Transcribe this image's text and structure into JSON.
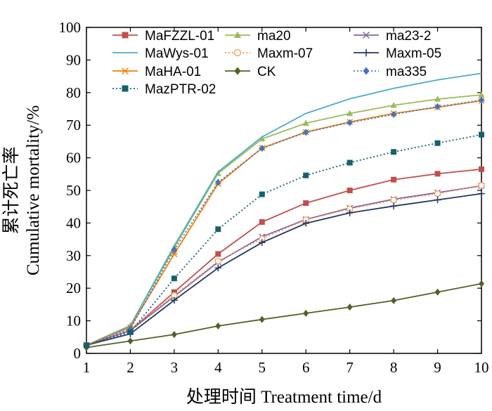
{
  "chart_data": {
    "type": "line",
    "xlabel": "处理时间 Treatment time/d",
    "ylabel_cn": "累计死亡率",
    "ylabel_en": "Cumulative mortality/%",
    "xlim": [
      1,
      10
    ],
    "ylim": [
      0,
      100
    ],
    "x_ticks": [
      1,
      2,
      3,
      4,
      5,
      6,
      7,
      8,
      9,
      10
    ],
    "y_ticks": [
      0,
      10,
      20,
      30,
      40,
      50,
      60,
      70,
      80,
      90,
      100
    ],
    "x": [
      1,
      2,
      3,
      4,
      5,
      6,
      7,
      8,
      9,
      10
    ],
    "legend_position": "top",
    "series": [
      {
        "name": "MaFZZL-01",
        "color": "#c0504d",
        "marker": "square",
        "dash": "solid",
        "values": [
          2.5,
          7.0,
          18.8,
          30.5,
          40.3,
          46.1,
          50.0,
          53.3,
          55.1,
          56.5
        ]
      },
      {
        "name": "ma20",
        "color": "#9bbb59",
        "marker": "triangle",
        "dash": "solid",
        "values": [
          2.5,
          8.5,
          32.5,
          55.2,
          65.8,
          70.6,
          73.6,
          76.1,
          78.0,
          79.3
        ]
      },
      {
        "name": "ma23-2",
        "color": "#8064a2",
        "marker": "x",
        "dash": "solid",
        "values": [
          2.5,
          7.0,
          17.5,
          28.0,
          35.8,
          41.1,
          44.6,
          47.3,
          49.3,
          51.4
        ]
      },
      {
        "name": "MaWys-01",
        "color": "#4bacc6",
        "marker": "none",
        "dash": "solid",
        "values": [
          2.5,
          8.5,
          33.0,
          55.7,
          66.4,
          73.6,
          78.1,
          81.3,
          83.9,
          85.9
        ]
      },
      {
        "name": "Maxm-07",
        "color": "#f79646",
        "marker": "circle-open",
        "dash": "dot",
        "values": [
          2.5,
          7.5,
          17.8,
          28.3,
          35.2,
          41.0,
          44.3,
          47.0,
          49.0,
          51.5
        ]
      },
      {
        "name": "Maxm-05",
        "color": "#1f3864",
        "marker": "plus",
        "dash": "solid",
        "values": [
          2.5,
          6.0,
          16.3,
          26.2,
          34.0,
          39.9,
          43.1,
          45.2,
          47.1,
          49.0
        ]
      },
      {
        "name": "MaHA-01",
        "color": "#f07f09",
        "marker": "star",
        "dash": "solid",
        "values": [
          2.5,
          8.0,
          30.5,
          52.0,
          63.0,
          67.9,
          71.0,
          73.6,
          75.5,
          77.5
        ]
      },
      {
        "name": "CK",
        "color": "#4f6228",
        "marker": "diamond",
        "dash": "solid",
        "values": [
          1.8,
          3.8,
          5.8,
          8.4,
          10.4,
          12.3,
          14.2,
          16.2,
          18.8,
          21.4
        ]
      },
      {
        "name": "ma335",
        "color": "#4472c4",
        "marker": "diamond",
        "dash": "dot",
        "values": [
          2.5,
          7.5,
          31.8,
          52.5,
          62.9,
          67.8,
          70.8,
          73.3,
          75.7,
          77.7
        ]
      },
      {
        "name": "MazPTR-02",
        "color": "#17606e",
        "marker": "square",
        "dash": "dot",
        "values": [
          2.5,
          6.5,
          23.0,
          38.1,
          48.8,
          54.6,
          58.5,
          61.8,
          64.5,
          67.1
        ]
      }
    ]
  }
}
